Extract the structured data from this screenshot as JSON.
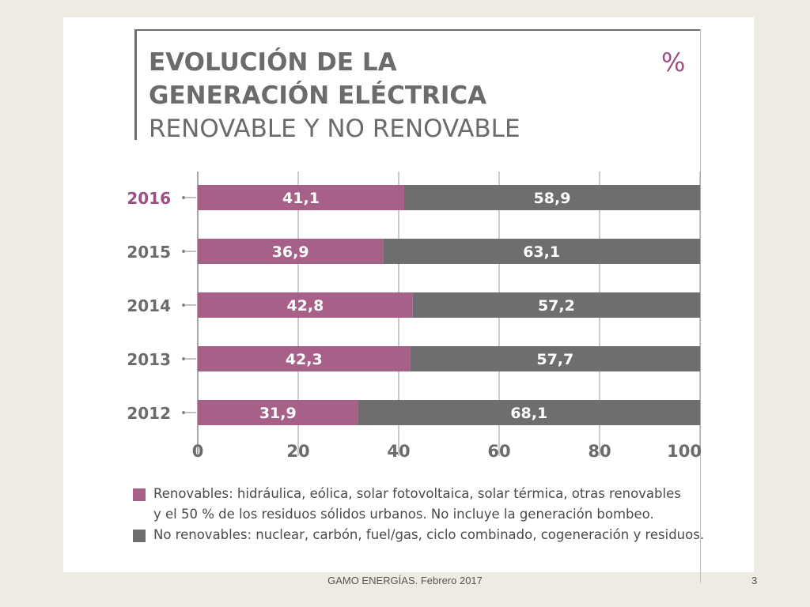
{
  "slide": {
    "footer": "GAMO ENERGÍAS. Febrero 2017",
    "page_number": "3"
  },
  "colors": {
    "renewable": "#a76189",
    "non_renewable": "#6e6e71",
    "highlight_year": "#9c4f82",
    "axis_text": "#6b6b6e"
  },
  "chart_data": {
    "type": "bar",
    "orientation": "horizontal",
    "stacked": true,
    "title": "EVOLUCIÓN DE LA GENERACIÓN ELÉCTRICA",
    "subtitle": "RENOVABLE Y NO RENOVABLE",
    "unit": "%",
    "categories": [
      "2016",
      "2015",
      "2014",
      "2013",
      "2012"
    ],
    "highlight_category": "2016",
    "series": [
      {
        "name": "Renovables",
        "color": "#a76189",
        "values": [
          41.1,
          36.9,
          42.8,
          42.3,
          31.9
        ],
        "labels": [
          "41,1",
          "36,9",
          "42,8",
          "42,3",
          "31,9"
        ]
      },
      {
        "name": "No renovables",
        "color": "#6e6e71",
        "values": [
          58.9,
          63.1,
          57.2,
          57.7,
          68.1
        ],
        "labels": [
          "58,9",
          "63,1",
          "57,2",
          "57,7",
          "68,1"
        ]
      }
    ],
    "xlim": [
      0,
      100
    ],
    "xticks": [
      0,
      20,
      40,
      60,
      80,
      100
    ],
    "grid": true,
    "legend": [
      {
        "color": "#a76189",
        "text_1": "Renovables: hidráulica, eólica, solar fotovoltaica, solar térmica, otras renovables",
        "text_2": "y el 50 % de los residuos sólidos urbanos. No incluye la generación bombeo."
      },
      {
        "color": "#6e6e71",
        "text_1": "No renovables: nuclear, carbón, fuel/gas, ciclo combinado, cogeneración y residuos."
      }
    ],
    "legend_position": "bottom"
  }
}
